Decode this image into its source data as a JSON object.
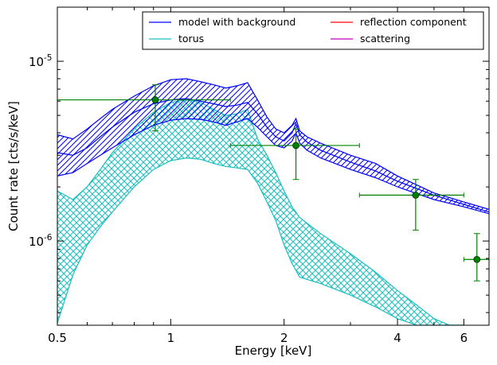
{
  "chart_data": {
    "type": "line",
    "title": "",
    "xlabel": "Energy [keV]",
    "ylabel": "Count rate [cts/s/keV]",
    "xscale": "log",
    "yscale": "log",
    "xlim": [
      0.5,
      7.0
    ],
    "ylim": [
      3.4e-07,
      2e-05
    ],
    "grid": false,
    "legend_placement": "top-right",
    "x_ticks": [
      {
        "value": 0.5,
        "label": "0.5"
      },
      {
        "value": 1,
        "label": "1"
      },
      {
        "value": 2,
        "label": "2"
      },
      {
        "value": 4,
        "label": "4"
      },
      {
        "value": 6,
        "label": "6"
      }
    ],
    "y_ticks": [
      {
        "value": 1e-06,
        "label": "10",
        "exp": "-6"
      },
      {
        "value": 1e-05,
        "label": "10",
        "exp": "-5"
      }
    ],
    "legend": [
      {
        "name": "model with background",
        "color": "#0000ff"
      },
      {
        "name": "reflection component",
        "color": "#ff0000"
      },
      {
        "name": "torus",
        "color": "#19bfbf"
      },
      {
        "name": "scattering",
        "color": "#bf00bf"
      }
    ],
    "series": [
      {
        "name": "model with background",
        "color": "#0000ff",
        "x": [
          0.5,
          0.55,
          0.6,
          0.65,
          0.7,
          0.8,
          0.9,
          1.0,
          1.1,
          1.2,
          1.3,
          1.4,
          1.5,
          1.6,
          1.7,
          1.8,
          1.9,
          2.0,
          2.1,
          2.15,
          2.2,
          2.3,
          2.5,
          3.0,
          3.5,
          4.0,
          5.0,
          6.0,
          7.0
        ],
        "upper": [
          3.9e-06,
          3.7e-06,
          4.2e-06,
          4.8e-06,
          5.4e-06,
          6.4e-06,
          7.3e-06,
          7.9e-06,
          8e-06,
          7.7e-06,
          7.4e-06,
          7.1e-06,
          7.3e-06,
          7.6e-06,
          6.1e-06,
          4.9e-06,
          4.2e-06,
          4e-06,
          4.4e-06,
          4.8e-06,
          4.1e-06,
          3.8e-06,
          3.5e-06,
          3e-06,
          2.7e-06,
          2.3e-06,
          1.85e-06,
          1.65e-06,
          1.5e-06
        ],
        "mid": [
          3.1e-06,
          3e-06,
          3.3e-06,
          3.8e-06,
          4.3e-06,
          5.2e-06,
          5.8e-06,
          6.1e-06,
          6.2e-06,
          6e-06,
          5.8e-06,
          5.6e-06,
          5.7e-06,
          5.9e-06,
          5.1e-06,
          4.3e-06,
          3.8e-06,
          3.6e-06,
          4e-06,
          4.5e-06,
          3.9e-06,
          3.55e-06,
          3.2e-06,
          2.75e-06,
          2.45e-06,
          2.15e-06,
          1.8e-06,
          1.6e-06,
          1.45e-06
        ],
        "lower": [
          2.3e-06,
          2.4e-06,
          2.7e-06,
          3e-06,
          3.3e-06,
          3.9e-06,
          4.4e-06,
          4.7e-06,
          4.8e-06,
          4.75e-06,
          4.6e-06,
          4.4e-06,
          4.6e-06,
          4.8e-06,
          4.3e-06,
          3.8e-06,
          3.4e-06,
          3.3e-06,
          3.6e-06,
          4e-06,
          3.5e-06,
          3.2e-06,
          2.9e-06,
          2.5e-06,
          2.25e-06,
          2e-06,
          1.7e-06,
          1.55e-06,
          1.42e-06
        ]
      },
      {
        "name": "torus",
        "color": "#19bfbf",
        "x": [
          0.5,
          0.55,
          0.6,
          0.65,
          0.7,
          0.8,
          0.9,
          1.0,
          1.1,
          1.2,
          1.3,
          1.4,
          1.5,
          1.6,
          1.7,
          1.8,
          1.9,
          2.0,
          2.1,
          2.2,
          2.5,
          3.0,
          3.5,
          4.0,
          4.5,
          5.0,
          5.5,
          6.0
        ],
        "upper": [
          1.9e-06,
          1.7e-06,
          2e-06,
          2.5e-06,
          3.1e-06,
          4.2e-06,
          5.2e-06,
          5.9e-06,
          6.1e-06,
          5.9e-06,
          5.4e-06,
          5e-06,
          5.1e-06,
          5.4e-06,
          3.7e-06,
          3e-06,
          2.4e-06,
          1.9e-06,
          1.55e-06,
          1.35e-06,
          1.1e-06,
          8.5e-07,
          6.7e-07,
          5.3e-07,
          4.4e-07,
          3.7e-07,
          3.4e-07,
          3.4e-07
        ],
        "lower": [
          3.5e-07,
          6.5e-07,
          9.5e-07,
          1.2e-06,
          1.45e-06,
          2e-06,
          2.5e-06,
          2.8e-06,
          2.9e-06,
          2.85e-06,
          2.7e-06,
          2.6e-06,
          2.55e-06,
          2.5e-06,
          2.1e-06,
          1.65e-06,
          1.3e-06,
          9.5e-07,
          7.5e-07,
          6.3e-07,
          5.8e-07,
          5e-07,
          4.3e-07,
          3.7e-07,
          3.4e-07,
          3.4e-07,
          3.4e-07,
          3.4e-07
        ]
      }
    ],
    "data_points": [
      {
        "x": 0.91,
        "y": 6.1e-06,
        "xerr": [
          0.5,
          1.44
        ],
        "yerr": [
          4.1e-06,
          7.4e-06
        ]
      },
      {
        "x": 2.15,
        "y": 3.4e-06,
        "xerr": [
          1.44,
          3.17
        ],
        "yerr": [
          2.2e-06,
          4.2e-06
        ]
      },
      {
        "x": 4.47,
        "y": 1.8e-06,
        "xerr": [
          3.17,
          6.0
        ],
        "yerr": [
          1.15e-06,
          2.2e-06
        ]
      },
      {
        "x": 6.5,
        "y": 7.9e-07,
        "xerr": [
          6.0,
          7.0
        ],
        "yerr": [
          6e-07,
          1.1e-06
        ]
      }
    ]
  }
}
